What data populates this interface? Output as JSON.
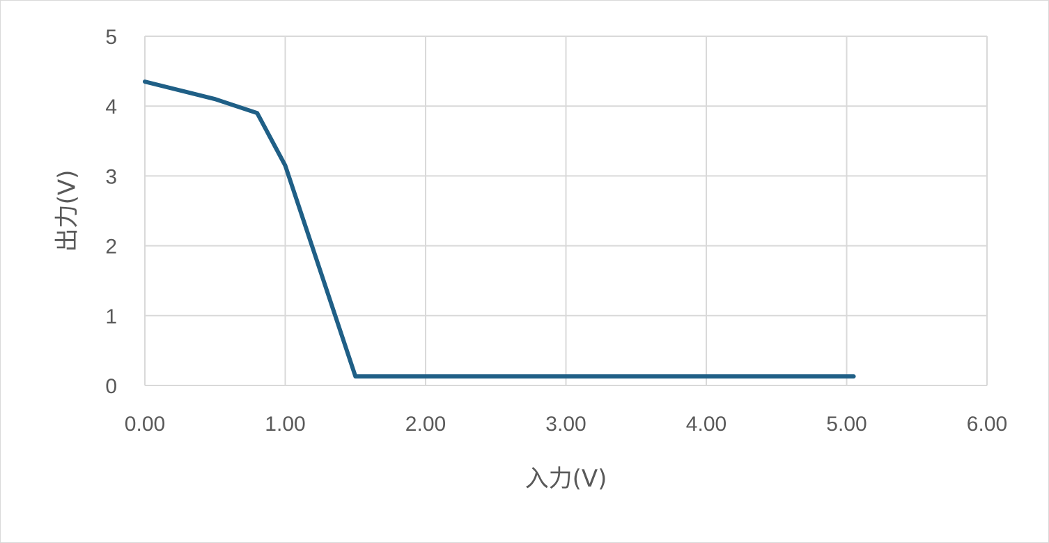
{
  "chart_data": {
    "type": "line",
    "title": "",
    "xlabel": "入力(V)",
    "ylabel": "出力(V)",
    "xlim": [
      0,
      6
    ],
    "ylim": [
      0,
      5
    ],
    "x_ticks": [
      "0.00",
      "1.00",
      "2.00",
      "3.00",
      "4.00",
      "5.00",
      "6.00"
    ],
    "y_ticks": [
      "0",
      "1",
      "2",
      "3",
      "4",
      "5"
    ],
    "grid": true,
    "legend": "none",
    "series": [
      {
        "color": "#1f5f86",
        "points": [
          {
            "x": 0.0,
            "y": 4.35
          },
          {
            "x": 0.5,
            "y": 4.1
          },
          {
            "x": 0.8,
            "y": 3.9
          },
          {
            "x": 1.0,
            "y": 3.15
          },
          {
            "x": 1.5,
            "y": 0.13
          },
          {
            "x": 2.0,
            "y": 0.13
          },
          {
            "x": 3.0,
            "y": 0.13
          },
          {
            "x": 4.0,
            "y": 0.13
          },
          {
            "x": 5.05,
            "y": 0.13
          }
        ]
      }
    ]
  }
}
